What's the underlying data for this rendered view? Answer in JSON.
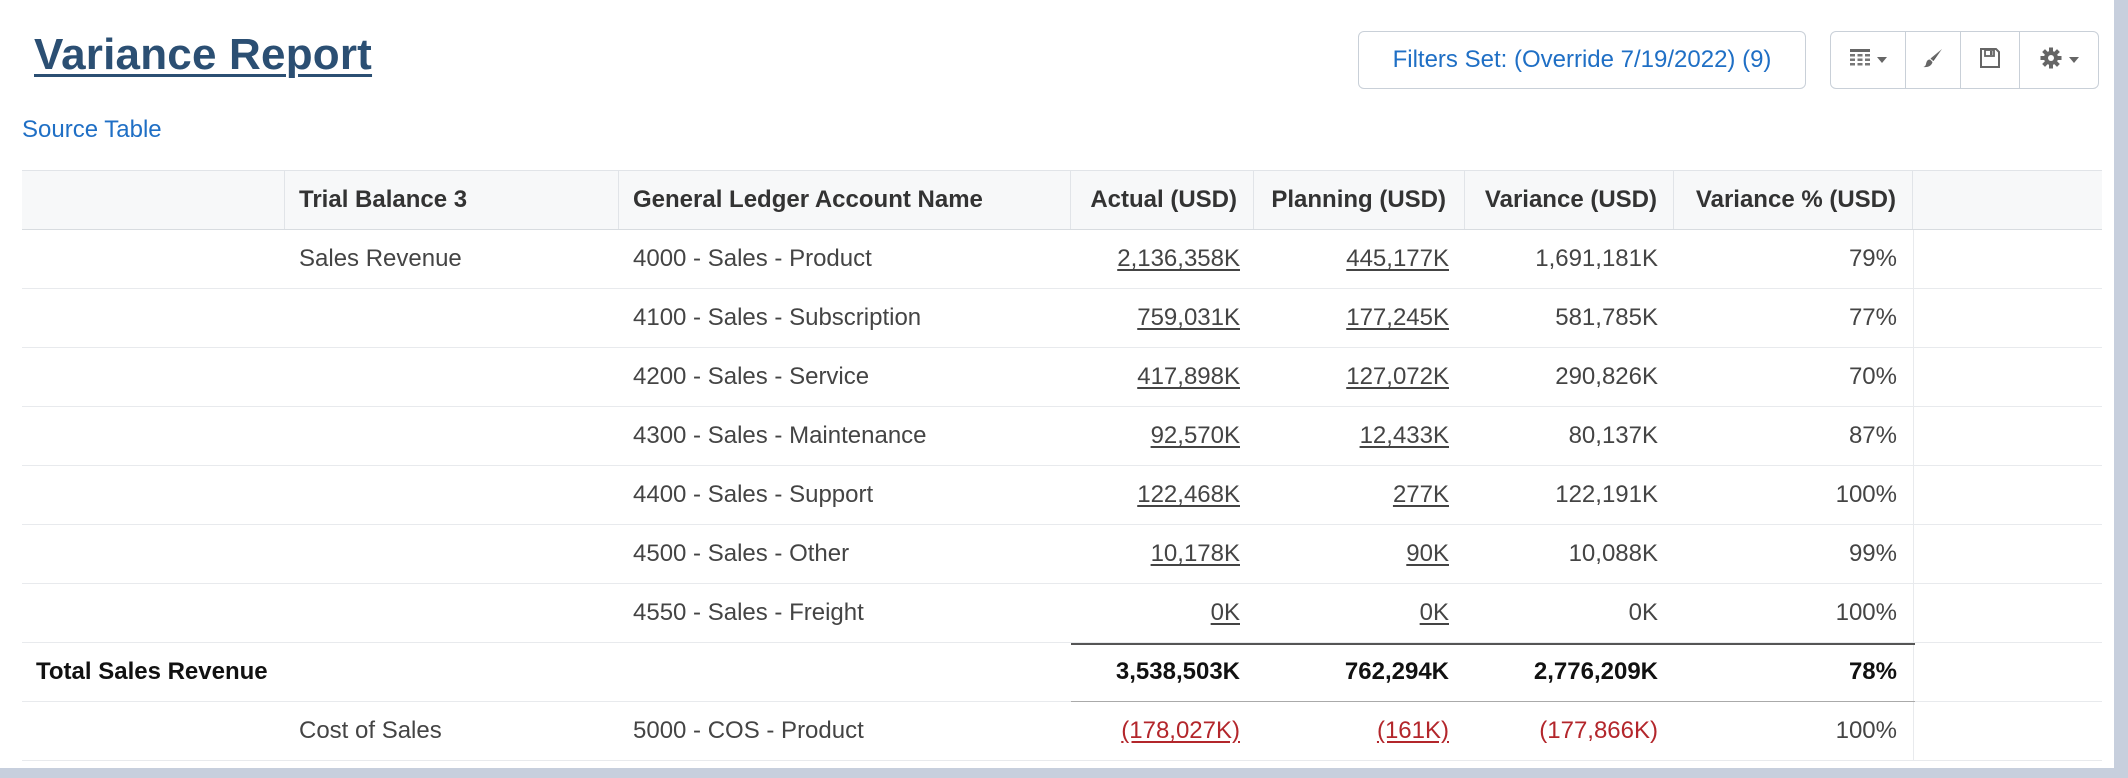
{
  "page": {
    "title": "Variance Report",
    "source_link": "Source Table",
    "filters_button": "Filters Set: (Override 7/19/2022) (9)"
  },
  "toolbar": {
    "icons": [
      "table-view-icon",
      "brush-icon",
      "save-icon",
      "gear-icon"
    ]
  },
  "table": {
    "headers": [
      "",
      "Trial Balance 3",
      "General Ledger Account Name",
      "Actual (USD)",
      "Planning (USD)",
      "Variance (USD)",
      "Variance % (USD)"
    ],
    "rows": [
      {
        "group": "Sales Revenue",
        "account": "4000 - Sales - Product",
        "actual": "2,136,358K",
        "planning": "445,177K",
        "variance": "1,691,181K",
        "variance_pct": "79%"
      },
      {
        "group": "",
        "account": "4100 - Sales - Subscription",
        "actual": "759,031K",
        "planning": "177,245K",
        "variance": "581,785K",
        "variance_pct": "77%"
      },
      {
        "group": "",
        "account": "4200 - Sales - Service",
        "actual": "417,898K",
        "planning": "127,072K",
        "variance": "290,826K",
        "variance_pct": "70%"
      },
      {
        "group": "",
        "account": "4300 - Sales - Maintenance",
        "actual": "92,570K",
        "planning": "12,433K",
        "variance": "80,137K",
        "variance_pct": "87%"
      },
      {
        "group": "",
        "account": "4400 - Sales - Support",
        "actual": "122,468K",
        "planning": "277K",
        "variance": "122,191K",
        "variance_pct": "100%"
      },
      {
        "group": "",
        "account": "4500 - Sales - Other",
        "actual": "10,178K",
        "planning": "90K",
        "variance": "10,088K",
        "variance_pct": "99%"
      },
      {
        "group": "",
        "account": "4550 - Sales - Freight",
        "actual": "0K",
        "planning": "0K",
        "variance": "0K",
        "variance_pct": "100%"
      }
    ],
    "total": {
      "label": "Total Sales Revenue",
      "actual": "3,538,503K",
      "planning": "762,294K",
      "variance": "2,776,209K",
      "variance_pct": "78%"
    },
    "cost_row": {
      "group": "Cost of Sales",
      "account": "5000 - COS - Product",
      "actual": "(178,027K)",
      "planning": "(161K)",
      "variance": "(177,866K)",
      "variance_pct": "100%"
    }
  },
  "colors": {
    "title": "#2b4f73",
    "link": "#1f6fc5",
    "negative": "#b3262b",
    "page_border": "#c7cfdd"
  }
}
